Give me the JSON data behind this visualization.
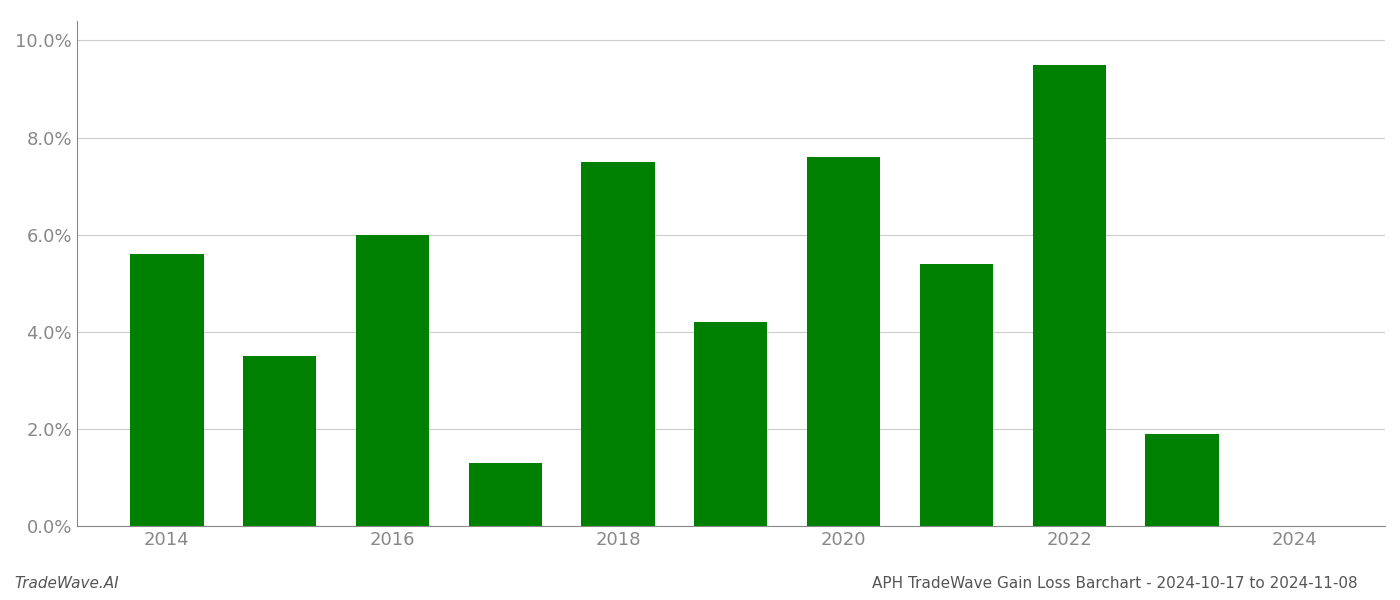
{
  "years": [
    2014,
    2015,
    2016,
    2017,
    2018,
    2019,
    2020,
    2021,
    2022,
    2023
  ],
  "values": [
    0.056,
    0.035,
    0.06,
    0.013,
    0.075,
    0.042,
    0.076,
    0.054,
    0.095,
    0.019
  ],
  "bar_color": "#008000",
  "title": "APH TradeWave Gain Loss Barchart - 2024-10-17 to 2024-11-08",
  "watermark": "TradeWave.AI",
  "xlim": [
    2013.2,
    2024.8
  ],
  "ylim": [
    0.0,
    0.104
  ],
  "yticks": [
    0.0,
    0.02,
    0.04,
    0.06,
    0.08,
    0.1
  ],
  "xticks": [
    2014,
    2016,
    2018,
    2020,
    2022,
    2024
  ],
  "background_color": "#ffffff",
  "grid_color": "#cccccc",
  "tick_label_color": "#888888",
  "bar_width": 0.65,
  "spine_color": "#888888",
  "title_fontsize": 11,
  "tick_fontsize": 13
}
